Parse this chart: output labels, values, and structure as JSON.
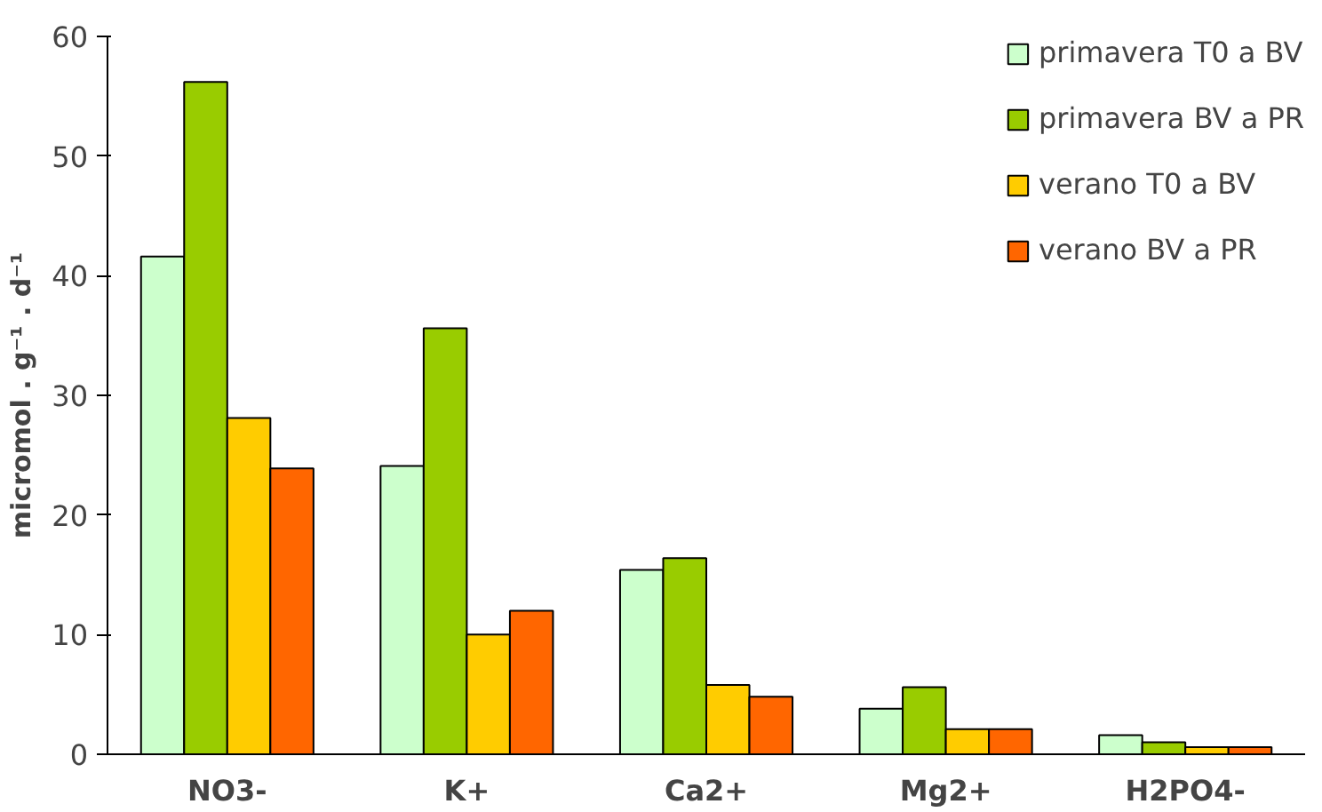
{
  "chart_data": {
    "type": "bar",
    "ylabel": "micromol . g⁻¹ . d⁻¹",
    "categories": [
      "NO3-",
      "K+",
      "Ca2+",
      "Mg2+",
      "H2PO4-"
    ],
    "series": [
      {
        "name": "primavera T0 a BV",
        "color": "#ccffcc",
        "values": [
          41.6,
          24.1,
          15.4,
          3.8,
          1.6
        ]
      },
      {
        "name": "primavera BV a PR",
        "color": "#99cc00",
        "values": [
          56.2,
          35.6,
          16.4,
          5.6,
          1.0
        ]
      },
      {
        "name": "verano T0 a BV",
        "color": "#ffcc00",
        "values": [
          28.1,
          10.0,
          5.8,
          2.1,
          0.6
        ]
      },
      {
        "name": "verano BV a PR",
        "color": "#ff6600",
        "values": [
          23.9,
          12.0,
          4.8,
          2.1,
          0.6
        ]
      }
    ],
    "ylim": [
      0,
      60
    ],
    "yticks": [
      0,
      10,
      20,
      30,
      40,
      50,
      60
    ],
    "grid": false,
    "legend": "top right"
  }
}
